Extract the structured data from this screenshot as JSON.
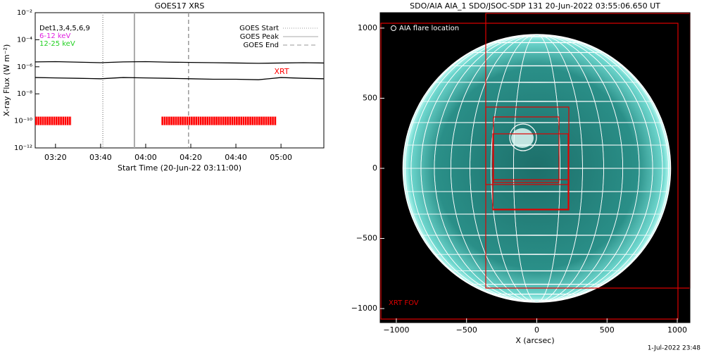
{
  "chart_data": [
    {
      "type": "line",
      "title": "GOES17 XRS",
      "ylabel": "X-ray Flux (W m⁻²)",
      "xlabel": "Start Time (20-Jun-22 03:11:00)",
      "log_y": true,
      "ylim": [
        1e-12,
        0.01
      ],
      "yticks": [
        {
          "value": 1e-12,
          "label": "10⁻¹²"
        },
        {
          "value": 1e-10,
          "label": "10⁻¹⁰"
        },
        {
          "value": 1e-08,
          "label": "10⁻⁸"
        },
        {
          "value": 1e-06,
          "label": "10⁻⁶"
        },
        {
          "value": 0.0001,
          "label": "10⁻⁴"
        },
        {
          "value": 0.01,
          "label": "10⁻²"
        }
      ],
      "xlim": [
        "03:11",
        "05:19"
      ],
      "xticks": [
        "03:20",
        "03:40",
        "04:00",
        "04:20",
        "04:40",
        "05:00"
      ],
      "x": [
        "03:11",
        "03:20",
        "03:30",
        "03:40",
        "03:50",
        "04:00",
        "04:10",
        "04:20",
        "04:30",
        "04:40",
        "04:50",
        "05:00",
        "05:10",
        "05:19"
      ],
      "series": [
        {
          "color": "#000000",
          "values": [
            2.3e-06,
            2.4e-06,
            2.2e-06,
            2e-06,
            2.3e-06,
            2.4e-06,
            2.2e-06,
            2.1e-06,
            2e-06,
            1.9e-06,
            1.8e-06,
            1.9e-06,
            2e-06,
            1.9e-06
          ]
        },
        {
          "color": "#000000",
          "values": [
            1.6e-07,
            1.5e-07,
            1.4e-07,
            1.3e-07,
            1.6e-07,
            1.5e-07,
            1.4e-07,
            1.3e-07,
            1.2e-07,
            1.2e-07,
            1.1e-07,
            1.6e-07,
            1.4e-07,
            1.3e-07
          ]
        }
      ],
      "channels": [
        {
          "label": "Det1,3,4,5,6,9",
          "color": "#000000"
        },
        {
          "label": "6-12 keV",
          "color": "#e020e0"
        },
        {
          "label": "12-25 keV",
          "color": "#20d020"
        }
      ],
      "events": [
        {
          "name": "GOES Start",
          "x": "03:41",
          "style": "dotted",
          "color": "#999999"
        },
        {
          "name": "GOES Peak",
          "x": "03:55",
          "style": "solid",
          "color": "#aaaaaa"
        },
        {
          "name": "GOES End",
          "x": "04:19",
          "style": "dashed",
          "color": "#999999"
        }
      ],
      "xrt_label": "XRT",
      "xrt_level": 1e-10,
      "xrt_intervals": [
        [
          "03:11",
          "03:27"
        ],
        [
          "04:07",
          "04:58"
        ]
      ],
      "xrt_color": "#ff0000"
    },
    {
      "type": "map",
      "title": "SDO/AIA AIA_1 SDO/JSOC-SDP 131 20-Jun-2022 03:55:06.650 UT",
      "xlabel": "X (arcsec)",
      "xlim": [
        -1115,
        1090
      ],
      "ylim": [
        -1100,
        1110
      ],
      "xticks": [
        {
          "value": -1000,
          "label": "−1000"
        },
        {
          "value": -500,
          "label": "−500"
        },
        0,
        500,
        1000
      ],
      "yticks": [
        {
          "value": -1000,
          "label": "−1000"
        },
        {
          "value": -500,
          "label": "−500"
        },
        0,
        500,
        1000
      ],
      "annotations": [
        "AIA flare location",
        "XRT FOV"
      ]
    }
  ],
  "footer": "1-Jul-2022 23:48"
}
